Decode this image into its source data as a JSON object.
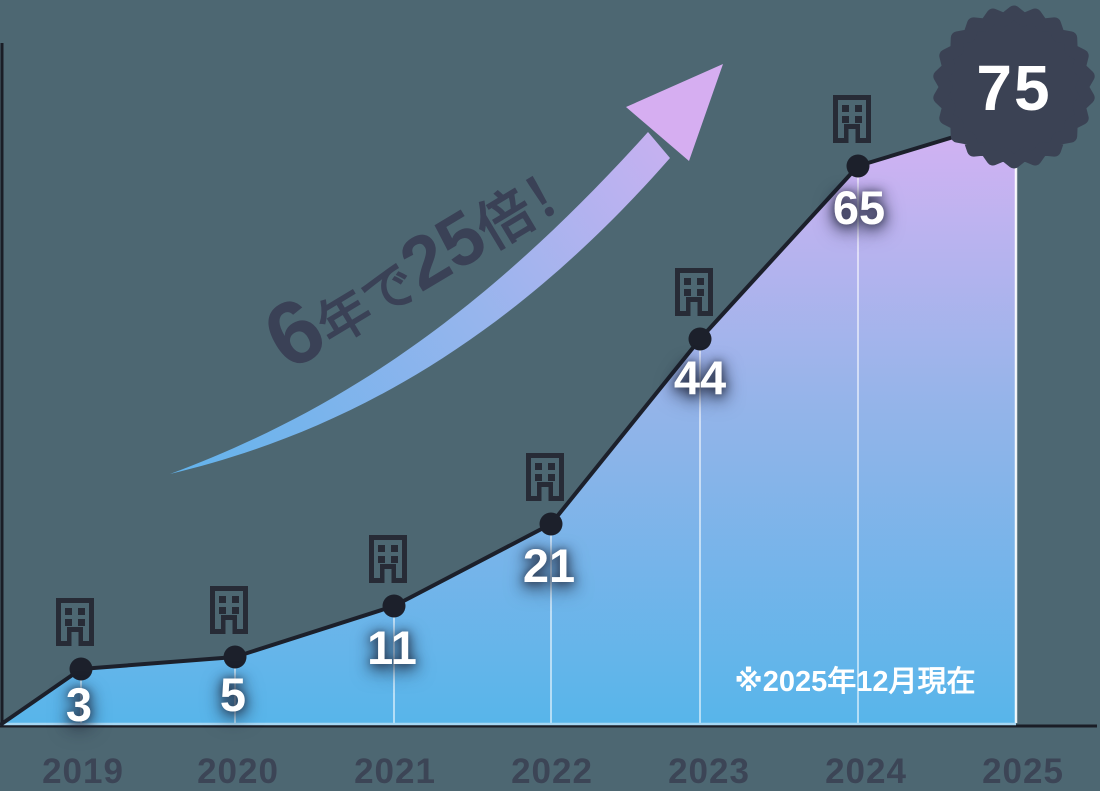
{
  "chart_data": {
    "type": "area",
    "categories": [
      "2019",
      "2020",
      "2021",
      "2022",
      "2023",
      "2024",
      "2025"
    ],
    "values": [
      3,
      5,
      11,
      21,
      44,
      65,
      75
    ],
    "badge_value": "75",
    "note": "※2025年12月現在",
    "annotation": {
      "text": "6年で25倍！",
      "parts": {
        "big1": "6",
        "small1": "年で",
        "big2": "25",
        "small2": "倍！"
      }
    },
    "xlabel": "",
    "ylabel": "",
    "ylim": [
      0,
      80
    ],
    "grid": "off",
    "legend": "none",
    "point_icon": "building-icon",
    "colors": {
      "background": "#4d6772",
      "area_top": "#d9b1f3",
      "area_mid": "#93b4e9",
      "area_bottom": "#57b5ea",
      "line": "#1c202b",
      "dot": "#1c202b",
      "icon": "#272b36",
      "badge": "#3b4254",
      "value_text": "#ffffff",
      "axis_text": "#3c4556",
      "annotation_text": "#3a4156",
      "arrow_tail": "#62b3ec",
      "arrow_head": "#d8aff2"
    }
  }
}
